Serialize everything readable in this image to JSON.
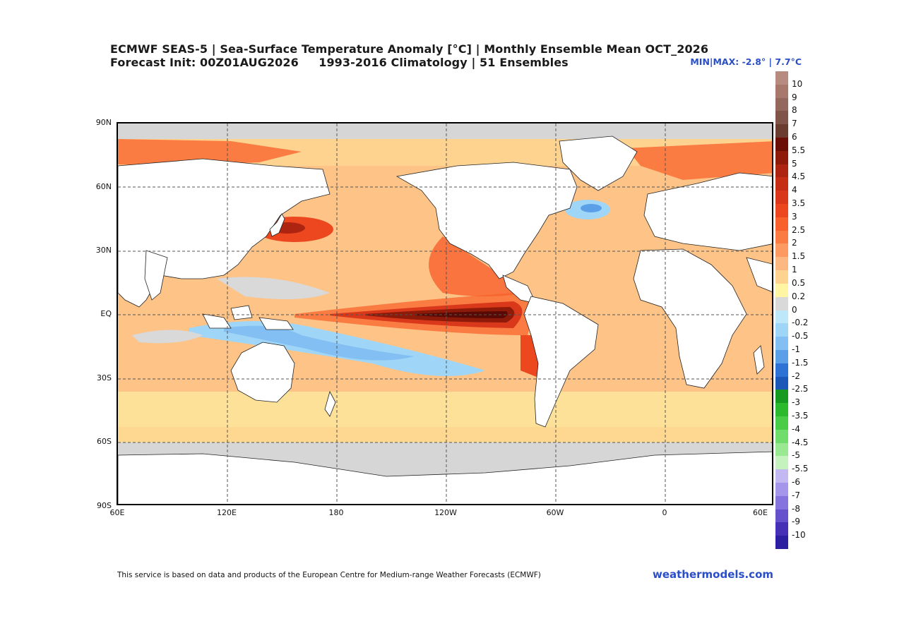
{
  "header": {
    "title_line1": "ECMWF SEAS-5 | Sea-Surface Temperature Anomaly [°C] | Monthly Ensemble Mean OCT_2026",
    "title_line2": "Forecast Init: 00Z01AUG2026     1993-2016 Climatology | 51 Ensembles",
    "minmax": "MIN|MAX: -2.8° | 7.7°C"
  },
  "map": {
    "latitude_labels": [
      "90N",
      "60N",
      "30N",
      "EQ",
      "30S",
      "60S",
      "90S"
    ],
    "longitude_labels": [
      "60E",
      "120E",
      "180",
      "120W",
      "60W",
      "0",
      "60E"
    ],
    "colors": {
      "land": "#ffffff",
      "ice": "#d6d6d6",
      "gridline": "#555555",
      "coast": "#222222"
    }
  },
  "colorbar": {
    "labels": [
      "10",
      "9",
      "8",
      "7",
      "6",
      "5.5",
      "5",
      "4.5",
      "4",
      "3.5",
      "3",
      "2.5",
      "2",
      "1.5",
      "1",
      "0.5",
      "0.2",
      "0",
      "-0.2",
      "-0.5",
      "-1",
      "-1.5",
      "-2",
      "-2.5",
      "-3",
      "-3.5",
      "-4",
      "-4.5",
      "-5",
      "-5.5",
      "-6",
      "-7",
      "-8",
      "-9",
      "-10"
    ],
    "colors": [
      "#b88b80",
      "#a8786c",
      "#94685c",
      "#805448",
      "#6a3d30",
      "#6b0f06",
      "#8e1a0a",
      "#ad2410",
      "#c52e14",
      "#d9391a",
      "#ec471f",
      "#f8602c",
      "#fb7c43",
      "#fc9a62",
      "#fdb781",
      "#fdd38f",
      "#fff5a3",
      "#d9d9d9",
      "#bde8fa",
      "#9fd6f7",
      "#83bff2",
      "#5b9fe9",
      "#2f72d6",
      "#1d58b8",
      "#169a20",
      "#2bb92e",
      "#49cc48",
      "#6fdc6b",
      "#98e992",
      "#c4f3bd",
      "#c4b8f3",
      "#a596ec",
      "#8673dd",
      "#6650cb",
      "#4530b6",
      "#2c20a0"
    ]
  },
  "footer": {
    "credit": "This service is based on data and products of the European Centre for Medium-range Weather Forecasts (ECMWF)",
    "brand": "weathermodels.com"
  }
}
